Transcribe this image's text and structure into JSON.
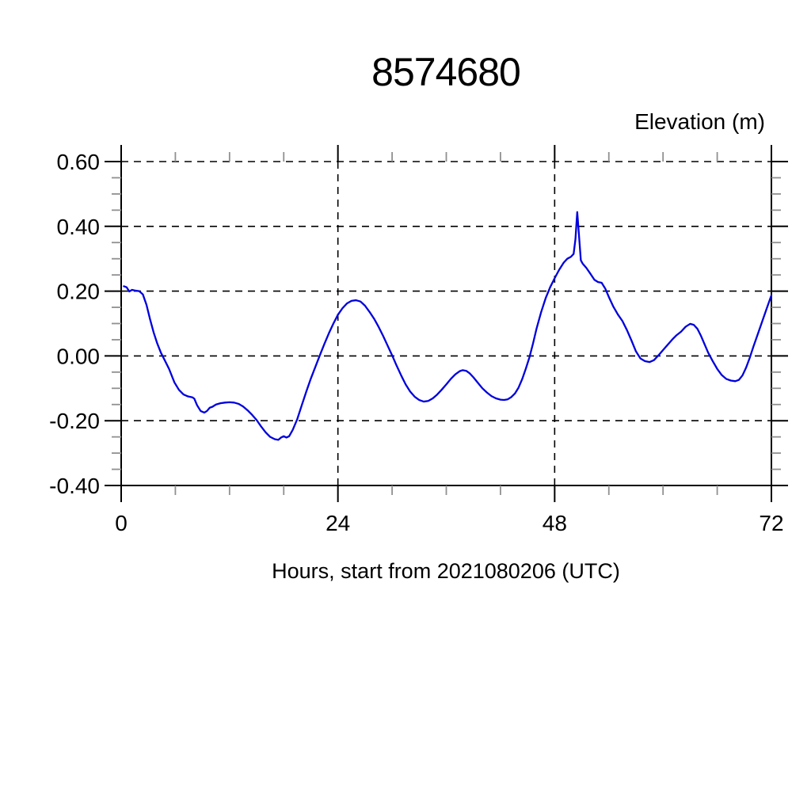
{
  "page": {
    "background": "#ffffff"
  },
  "chart_data": {
    "type": "line",
    "title": "8574680",
    "units_label": "Elevation (m)",
    "xlabel": "Hours, start from 2021080206 (UTC)",
    "xlim": [
      0,
      72
    ],
    "ylim": [
      -0.4,
      0.6
    ],
    "x_major_ticks": [
      0,
      24,
      48,
      72
    ],
    "x_minor_tick_step": 6,
    "y_major_ticks": [
      0.6,
      0.4,
      0.2,
      0.0,
      -0.2,
      -0.4
    ],
    "y_minor_tick_step": 0.05,
    "x_tick_labels": [
      "0",
      "24",
      "48",
      "72"
    ],
    "y_tick_labels": [
      "0.60",
      "0.40",
      "0.20",
      "0.00",
      "-0.20",
      "-0.40"
    ],
    "x_gridlines": [
      24,
      48
    ],
    "y_gridlines": [
      0.6,
      0.4,
      0.2,
      0.0,
      -0.2
    ],
    "grid_style": "dashed",
    "legend": "none",
    "line_color": "#0000dd",
    "axis_color": "#000000",
    "minor_tick_color": "#909090",
    "series": [
      {
        "name": "elevation",
        "points": [
          [
            0.3,
            0.215
          ],
          [
            0.6,
            0.212
          ],
          [
            0.9,
            0.199
          ],
          [
            1.2,
            0.204
          ],
          [
            1.5,
            0.202
          ],
          [
            2.0,
            0.2
          ],
          [
            2.4,
            0.19
          ],
          [
            2.8,
            0.158
          ],
          [
            3.2,
            0.113
          ],
          [
            3.6,
            0.072
          ],
          [
            4.0,
            0.038
          ],
          [
            4.4,
            0.01
          ],
          [
            4.8,
            -0.012
          ],
          [
            5.3,
            -0.04
          ],
          [
            5.9,
            -0.082
          ],
          [
            6.4,
            -0.105
          ],
          [
            6.9,
            -0.119
          ],
          [
            7.4,
            -0.125
          ],
          [
            7.9,
            -0.128
          ],
          [
            8.1,
            -0.132
          ],
          [
            8.4,
            -0.152
          ],
          [
            8.8,
            -0.17
          ],
          [
            9.2,
            -0.175
          ],
          [
            9.5,
            -0.17
          ],
          [
            9.8,
            -0.16
          ],
          [
            10.1,
            -0.157
          ],
          [
            10.5,
            -0.15
          ],
          [
            11.0,
            -0.146
          ],
          [
            11.5,
            -0.144
          ],
          [
            12.0,
            -0.143
          ],
          [
            12.5,
            -0.144
          ],
          [
            13.0,
            -0.148
          ],
          [
            13.5,
            -0.156
          ],
          [
            14.0,
            -0.168
          ],
          [
            14.5,
            -0.182
          ],
          [
            15.0,
            -0.198
          ],
          [
            15.5,
            -0.218
          ],
          [
            16.0,
            -0.236
          ],
          [
            16.5,
            -0.25
          ],
          [
            17.0,
            -0.257
          ],
          [
            17.4,
            -0.259
          ],
          [
            17.7,
            -0.252
          ],
          [
            18.0,
            -0.248
          ],
          [
            18.3,
            -0.252
          ],
          [
            18.6,
            -0.248
          ],
          [
            19.0,
            -0.228
          ],
          [
            19.5,
            -0.195
          ],
          [
            20.0,
            -0.152
          ],
          [
            20.5,
            -0.11
          ],
          [
            21.0,
            -0.07
          ],
          [
            21.5,
            -0.034
          ],
          [
            22.0,
            0.002
          ],
          [
            22.5,
            0.037
          ],
          [
            23.0,
            0.07
          ],
          [
            23.5,
            0.1
          ],
          [
            24.0,
            0.127
          ],
          [
            24.5,
            0.147
          ],
          [
            25.0,
            0.162
          ],
          [
            25.5,
            0.17
          ],
          [
            26.0,
            0.172
          ],
          [
            26.5,
            0.168
          ],
          [
            27.0,
            0.155
          ],
          [
            27.5,
            0.136
          ],
          [
            28.0,
            0.115
          ],
          [
            28.5,
            0.09
          ],
          [
            29.0,
            0.062
          ],
          [
            29.5,
            0.032
          ],
          [
            30.0,
            0.002
          ],
          [
            30.5,
            -0.03
          ],
          [
            31.0,
            -0.06
          ],
          [
            31.5,
            -0.088
          ],
          [
            32.0,
            -0.11
          ],
          [
            32.5,
            -0.126
          ],
          [
            33.0,
            -0.136
          ],
          [
            33.5,
            -0.141
          ],
          [
            34.0,
            -0.139
          ],
          [
            34.5,
            -0.131
          ],
          [
            35.0,
            -0.119
          ],
          [
            35.5,
            -0.104
          ],
          [
            36.0,
            -0.088
          ],
          [
            36.5,
            -0.071
          ],
          [
            37.0,
            -0.057
          ],
          [
            37.5,
            -0.047
          ],
          [
            37.8,
            -0.044
          ],
          [
            38.2,
            -0.046
          ],
          [
            38.6,
            -0.054
          ],
          [
            39.0,
            -0.066
          ],
          [
            39.5,
            -0.083
          ],
          [
            40.0,
            -0.1
          ],
          [
            40.5,
            -0.113
          ],
          [
            41.0,
            -0.124
          ],
          [
            41.5,
            -0.131
          ],
          [
            42.0,
            -0.135
          ],
          [
            42.4,
            -0.136
          ],
          [
            42.8,
            -0.134
          ],
          [
            43.2,
            -0.127
          ],
          [
            43.6,
            -0.116
          ],
          [
            44.0,
            -0.098
          ],
          [
            44.4,
            -0.072
          ],
          [
            44.8,
            -0.04
          ],
          [
            45.2,
            -0.005
          ],
          [
            45.6,
            0.038
          ],
          [
            46.0,
            0.085
          ],
          [
            46.5,
            0.135
          ],
          [
            47.0,
            0.178
          ],
          [
            47.5,
            0.212
          ],
          [
            48.0,
            0.24
          ],
          [
            48.5,
            0.266
          ],
          [
            49.0,
            0.288
          ],
          [
            49.4,
            0.3
          ],
          [
            49.8,
            0.306
          ],
          [
            50.1,
            0.315
          ],
          [
            50.3,
            0.36
          ],
          [
            50.5,
            0.444
          ],
          [
            50.7,
            0.37
          ],
          [
            50.9,
            0.295
          ],
          [
            51.1,
            0.285
          ],
          [
            51.5,
            0.272
          ],
          [
            52.0,
            0.252
          ],
          [
            52.4,
            0.235
          ],
          [
            52.8,
            0.228
          ],
          [
            53.2,
            0.226
          ],
          [
            53.6,
            0.208
          ],
          [
            54.0,
            0.182
          ],
          [
            54.5,
            0.152
          ],
          [
            55.0,
            0.128
          ],
          [
            55.5,
            0.108
          ],
          [
            56.0,
            0.08
          ],
          [
            56.5,
            0.048
          ],
          [
            57.0,
            0.014
          ],
          [
            57.5,
            -0.008
          ],
          [
            58.0,
            -0.016
          ],
          [
            58.5,
            -0.019
          ],
          [
            59.0,
            -0.013
          ],
          [
            59.5,
            0.002
          ],
          [
            60.0,
            0.018
          ],
          [
            60.5,
            0.034
          ],
          [
            61.0,
            0.05
          ],
          [
            61.5,
            0.064
          ],
          [
            62.0,
            0.075
          ],
          [
            62.5,
            0.09
          ],
          [
            63.0,
            0.099
          ],
          [
            63.4,
            0.096
          ],
          [
            63.8,
            0.084
          ],
          [
            64.2,
            0.062
          ],
          [
            64.6,
            0.036
          ],
          [
            65.0,
            0.01
          ],
          [
            65.5,
            -0.016
          ],
          [
            66.0,
            -0.04
          ],
          [
            66.5,
            -0.059
          ],
          [
            67.0,
            -0.071
          ],
          [
            67.5,
            -0.076
          ],
          [
            68.0,
            -0.078
          ],
          [
            68.4,
            -0.074
          ],
          [
            68.8,
            -0.06
          ],
          [
            69.2,
            -0.036
          ],
          [
            69.6,
            -0.006
          ],
          [
            70.0,
            0.028
          ],
          [
            70.5,
            0.068
          ],
          [
            71.0,
            0.108
          ],
          [
            71.5,
            0.148
          ],
          [
            72.0,
            0.187
          ]
        ]
      }
    ]
  }
}
